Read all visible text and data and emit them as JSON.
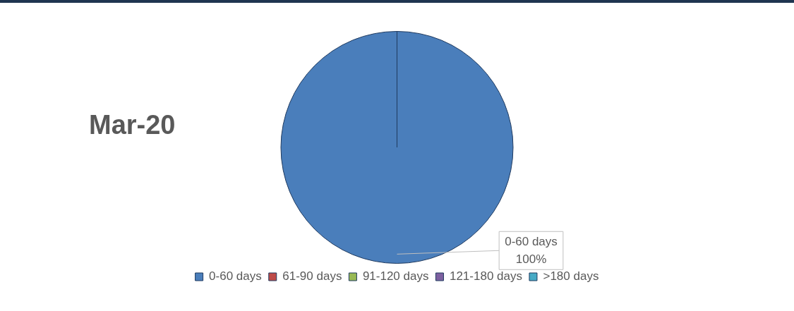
{
  "chart_data": {
    "type": "pie",
    "title": "Mar-20",
    "categories": [
      "0-60 days",
      "61-90 days",
      "91-120 days",
      "121-180 days",
      ">180 days"
    ],
    "values": [
      100,
      0,
      0,
      0,
      0
    ],
    "colors": [
      "#4a7ebb",
      "#be4b48",
      "#98b954",
      "#7d60a0",
      "#46aac5"
    ],
    "value_labels": [
      "100%",
      null,
      null,
      null,
      null
    ],
    "legend": "bottom"
  }
}
